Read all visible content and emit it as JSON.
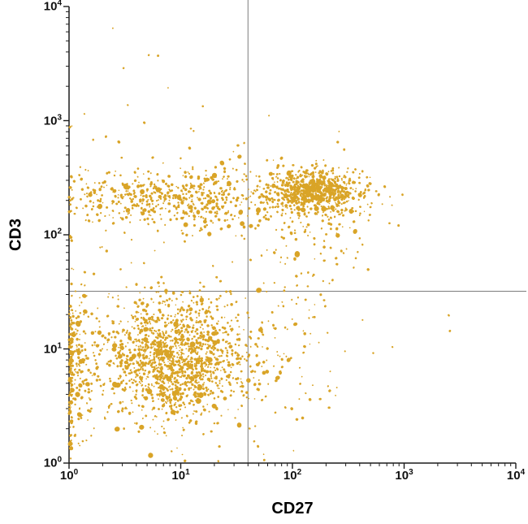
{
  "chart_data": {
    "type": "scatter",
    "title": "",
    "xlabel": "CD27",
    "ylabel": "CD3",
    "x_scale": "log",
    "y_scale": "log",
    "xlim": [
      1,
      10000
    ],
    "ylim": [
      1,
      10000
    ],
    "grid": false,
    "legend": false,
    "point_color": "#D9A427",
    "axis_color": "#1c1c1c",
    "gate_color": "#7d7d7d",
    "gates": {
      "x_value": 40,
      "y_value": 32
    },
    "x_axis": {
      "label": "CD27",
      "ticks": [
        {
          "base": "10",
          "exp": "0"
        },
        {
          "base": "10",
          "exp": "1"
        },
        {
          "base": "10",
          "exp": "2"
        },
        {
          "base": "10",
          "exp": "3"
        },
        {
          "base": "10",
          "exp": "4"
        }
      ]
    },
    "y_axis": {
      "label": "CD3",
      "ticks": [
        {
          "base": "10",
          "exp": "0"
        },
        {
          "base": "10",
          "exp": "1"
        },
        {
          "base": "10",
          "exp": "2"
        },
        {
          "base": "10",
          "exp": "3"
        },
        {
          "base": "10",
          "exp": "4"
        }
      ]
    },
    "clusters": [
      {
        "name": "lower-left-dense-cd27low-cd3neg",
        "n": 1400,
        "cx": 0.95,
        "cy": 0.92,
        "sx": 0.33,
        "sy": 0.26
      },
      {
        "name": "left-axis-pile-low",
        "n": 260,
        "cx": 0.03,
        "cy": 0.82,
        "sx": 0.12,
        "sy": 0.33
      },
      {
        "name": "cd3pos-cd27neg-band",
        "n": 380,
        "cx": 0.78,
        "cy": 2.32,
        "sx": 0.42,
        "sy": 0.13
      },
      {
        "name": "cd3pos-cd27neg-band-right",
        "n": 150,
        "cx": 1.32,
        "cy": 2.3,
        "sx": 0.22,
        "sy": 0.15
      },
      {
        "name": "cd3pos-cd27pos-dense",
        "n": 700,
        "cx": 2.2,
        "cy": 2.38,
        "sx": 0.2,
        "sy": 0.09
      },
      {
        "name": "cd3pos-cd27pos-halo",
        "n": 160,
        "cx": 2.15,
        "cy": 2.3,
        "sx": 0.32,
        "sy": 0.22
      },
      {
        "name": "cd3int-cd27pos-sparse",
        "n": 55,
        "cx": 2.1,
        "cy": 1.8,
        "sx": 0.25,
        "sy": 0.3
      },
      {
        "name": "cd3neg-cd27pos-sparse",
        "n": 65,
        "cx": 1.95,
        "cy": 0.95,
        "sx": 0.27,
        "sy": 0.35
      },
      {
        "name": "background-sparse",
        "n": 130,
        "cx": 1.1,
        "cy": 1.5,
        "sx": 0.85,
        "sy": 0.75
      },
      {
        "name": "high-cd3-outliers",
        "n": 10,
        "cx": 0.4,
        "cy": 3.3,
        "sx": 0.3,
        "sy": 0.4
      }
    ]
  }
}
